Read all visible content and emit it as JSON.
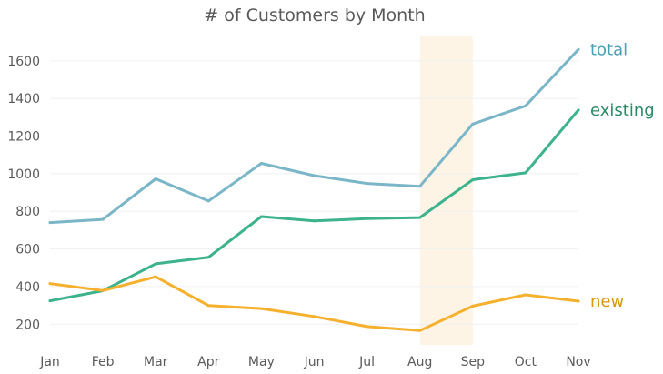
{
  "chart_data": {
    "type": "line",
    "title": "# of Customers by Month",
    "xlabel": "",
    "ylabel": "",
    "categories": [
      "Jan",
      "Feb",
      "Mar",
      "Apr",
      "May",
      "Jun",
      "Jul",
      "Aug",
      "Sep",
      "Oct",
      "Nov"
    ],
    "ylim": [
      90,
      1730
    ],
    "yticks": [
      200,
      400,
      600,
      800,
      1000,
      1200,
      1400,
      1600
    ],
    "grid": "horizontal",
    "highlight_band": {
      "from": "Aug",
      "to": "Sep",
      "color": "#fdf4e6"
    },
    "series": [
      {
        "name": "total",
        "color": "#7ab6c8",
        "label_color": "#4aa0b3",
        "values": [
          740,
          757,
          973,
          855,
          1055,
          990,
          948,
          933,
          1264,
          1361,
          1661
        ]
      },
      {
        "name": "existing",
        "color": "#3cb38c",
        "label_color": "#2a8a66",
        "values": [
          324,
          378,
          521,
          556,
          772,
          749,
          761,
          767,
          968,
          1005,
          1339
        ]
      },
      {
        "name": "new",
        "color": "#f5b02e",
        "label_color": "#d8960a",
        "values": [
          416,
          379,
          452,
          299,
          283,
          241,
          187,
          166,
          296,
          356,
          322
        ]
      }
    ]
  }
}
